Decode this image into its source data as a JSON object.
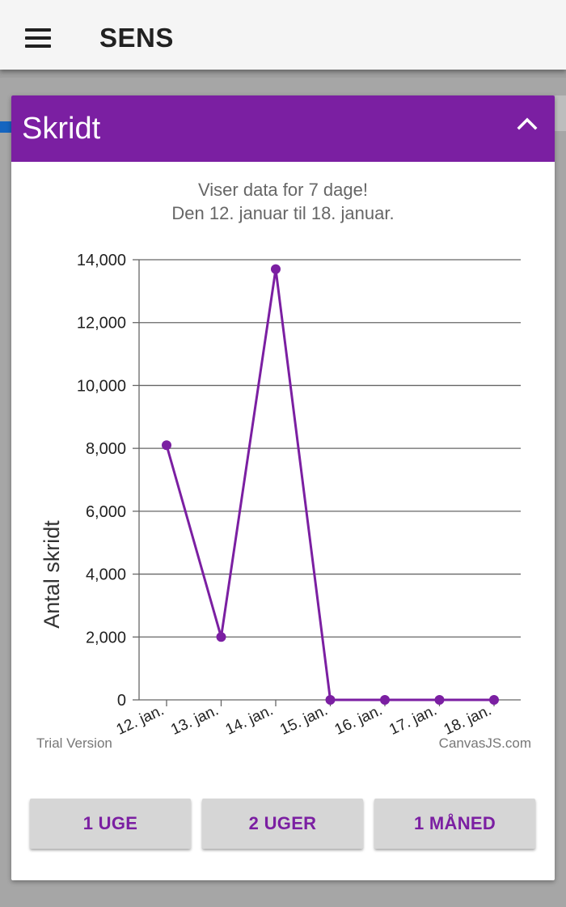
{
  "app": {
    "title": "SENS"
  },
  "card": {
    "title": "Skridt",
    "subtitle_line1": "Viser data for 7 dage!",
    "subtitle_line2": "Den 12. januar til 18. januar."
  },
  "colors": {
    "accent": "#7b1fa2",
    "series": "#7b1fa2",
    "button_bg": "#d6d6d6"
  },
  "icons": {
    "menu": "menu-icon",
    "collapse": "chevron-up-icon"
  },
  "chart_data": {
    "type": "line",
    "categories": [
      "12. jan.",
      "13. jan.",
      "14. jan.",
      "15. jan.",
      "16. jan.",
      "17. jan.",
      "18. jan."
    ],
    "values": [
      8100,
      2000,
      13700,
      0,
      0,
      0,
      0
    ],
    "ylabel": "Antal skridt",
    "ylim": [
      0,
      14000
    ],
    "yticks": [
      "0",
      "2,000",
      "4,000",
      "6,000",
      "8,000",
      "10,000",
      "12,000",
      "14,000"
    ],
    "grid": true,
    "credits_left": "Trial Version",
    "credits_right": "CanvasJS.com"
  },
  "buttons": {
    "week": "1 UGE",
    "two_weeks": "2 UGER",
    "month": "1 MÅNED"
  }
}
